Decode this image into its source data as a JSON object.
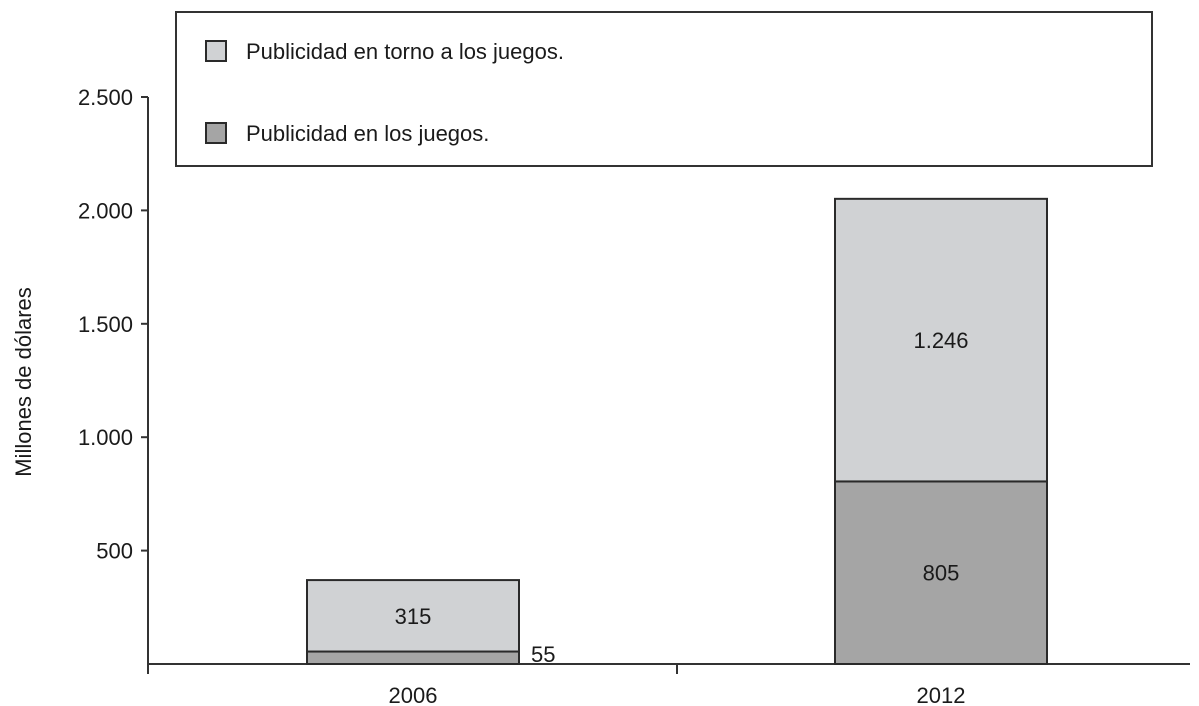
{
  "chart_data": {
    "type": "bar",
    "stacked": true,
    "categories": [
      "2006",
      "2012"
    ],
    "series": [
      {
        "name": "Publicidad en los juegos.",
        "values": [
          55,
          805
        ],
        "labels": [
          "55",
          "805"
        ],
        "color": "#a5a5a5"
      },
      {
        "name": "Publicidad en torno a los juegos.",
        "values": [
          315,
          1246
        ],
        "labels": [
          "315",
          "1.246"
        ],
        "color": "#d0d2d4"
      }
    ],
    "legend_order": [
      1,
      0
    ],
    "legend_position": "top",
    "ylabel": "Millones de dólares",
    "xlabel": "",
    "ylim": [
      0,
      2500
    ],
    "yticks": [
      {
        "value": 500,
        "label": "500"
      },
      {
        "value": 1000,
        "label": "1.000"
      },
      {
        "value": 1500,
        "label": "1.500"
      },
      {
        "value": 2000,
        "label": "2.000"
      },
      {
        "value": 2500,
        "label": "2.500"
      }
    ],
    "grid": false
  }
}
